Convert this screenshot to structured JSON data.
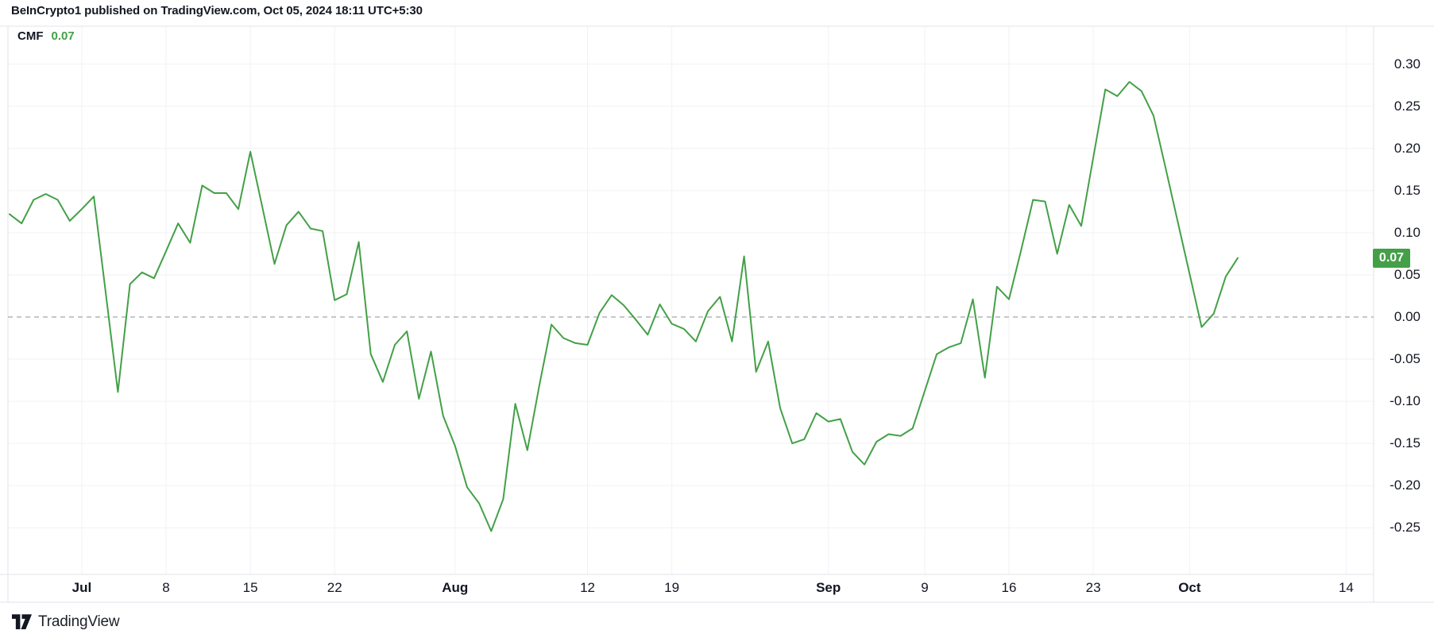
{
  "header": {
    "attribution": "BeInCrypto1 published on TradingView.com, Oct 05, 2024 18:11 UTC+5:30"
  },
  "legend": {
    "indicator": "CMF",
    "value": "0.07"
  },
  "badge": {
    "value": "0.07"
  },
  "watermark": {
    "brand": "TradingView"
  },
  "colors": {
    "line_green": "#43A047",
    "badge_green": "#43A047",
    "legend_value_green": "#43A047",
    "text_dark": "#131722",
    "grid": "#F0F2F6",
    "border": "#E0E3EB",
    "zero_line": "#8B8F99",
    "badge_text": "#FFFFFF",
    "background": "#FFFFFF"
  },
  "chart_data": {
    "type": "line",
    "title": "CMF",
    "series_name": "Chaikin Money Flow",
    "line_color": "#43A047",
    "frequency": "daily",
    "start_date": "2024-06-25",
    "end_date": "2024-10-05",
    "last_value": 0.07,
    "values": [
      0.122,
      0.111,
      0.139,
      0.146,
      0.139,
      0.114,
      0.128,
      0.143,
      0.027,
      -0.089,
      0.039,
      0.053,
      0.046,
      0.078,
      0.111,
      0.088,
      0.156,
      0.147,
      0.147,
      0.128,
      0.196,
      0.13,
      0.063,
      0.109,
      0.125,
      0.105,
      0.102,
      0.02,
      0.027,
      0.089,
      -0.044,
      -0.077,
      -0.033,
      -0.017,
      -0.097,
      -0.041,
      -0.117,
      -0.153,
      -0.202,
      -0.221,
      -0.254,
      -0.216,
      -0.103,
      -0.158,
      -0.081,
      -0.009,
      -0.025,
      -0.031,
      -0.033,
      0.005,
      0.026,
      0.014,
      -0.003,
      -0.021,
      0.015,
      -0.008,
      -0.014,
      -0.029,
      0.007,
      0.024,
      -0.029,
      0.072,
      -0.065,
      -0.029,
      -0.108,
      -0.15,
      -0.145,
      -0.114,
      -0.124,
      -0.121,
      -0.16,
      -0.175,
      -0.148,
      -0.139,
      -0.141,
      -0.132,
      -0.088,
      -0.044,
      -0.036,
      -0.031,
      0.021,
      -0.072,
      0.036,
      0.021,
      0.079,
      0.139,
      0.137,
      0.075,
      0.133,
      0.108,
      0.189,
      0.27,
      0.262,
      0.279,
      0.268,
      0.239,
      0.177,
      0.114,
      0.051,
      -0.012,
      0.004,
      0.048,
      0.07
    ],
    "ylim": [
      -0.305,
      0.345
    ],
    "y_ticks": [
      0.3,
      0.25,
      0.2,
      0.15,
      0.1,
      0.05,
      0.0,
      -0.05,
      -0.1,
      -0.15,
      -0.2,
      -0.25
    ],
    "x_ticks": [
      {
        "label": "Jul",
        "date": "2024-07-01",
        "bold": true
      },
      {
        "label": "8",
        "date": "2024-07-08",
        "bold": false
      },
      {
        "label": "15",
        "date": "2024-07-15",
        "bold": false
      },
      {
        "label": "22",
        "date": "2024-07-22",
        "bold": false
      },
      {
        "label": "Aug",
        "date": "2024-08-01",
        "bold": true
      },
      {
        "label": "12",
        "date": "2024-08-12",
        "bold": false
      },
      {
        "label": "19",
        "date": "2024-08-19",
        "bold": false
      },
      {
        "label": "Sep",
        "date": "2024-09-01",
        "bold": true
      },
      {
        "label": "9",
        "date": "2024-09-09",
        "bold": false
      },
      {
        "label": "16",
        "date": "2024-09-16",
        "bold": false
      },
      {
        "label": "23",
        "date": "2024-09-23",
        "bold": false
      },
      {
        "label": "Oct",
        "date": "2024-10-01",
        "bold": true
      },
      {
        "label": "14",
        "date": "2024-10-14",
        "bold": false
      }
    ],
    "zero_line": {
      "value": 0.0,
      "style": "dashed"
    },
    "grid": true,
    "legend_position": "top-left"
  }
}
